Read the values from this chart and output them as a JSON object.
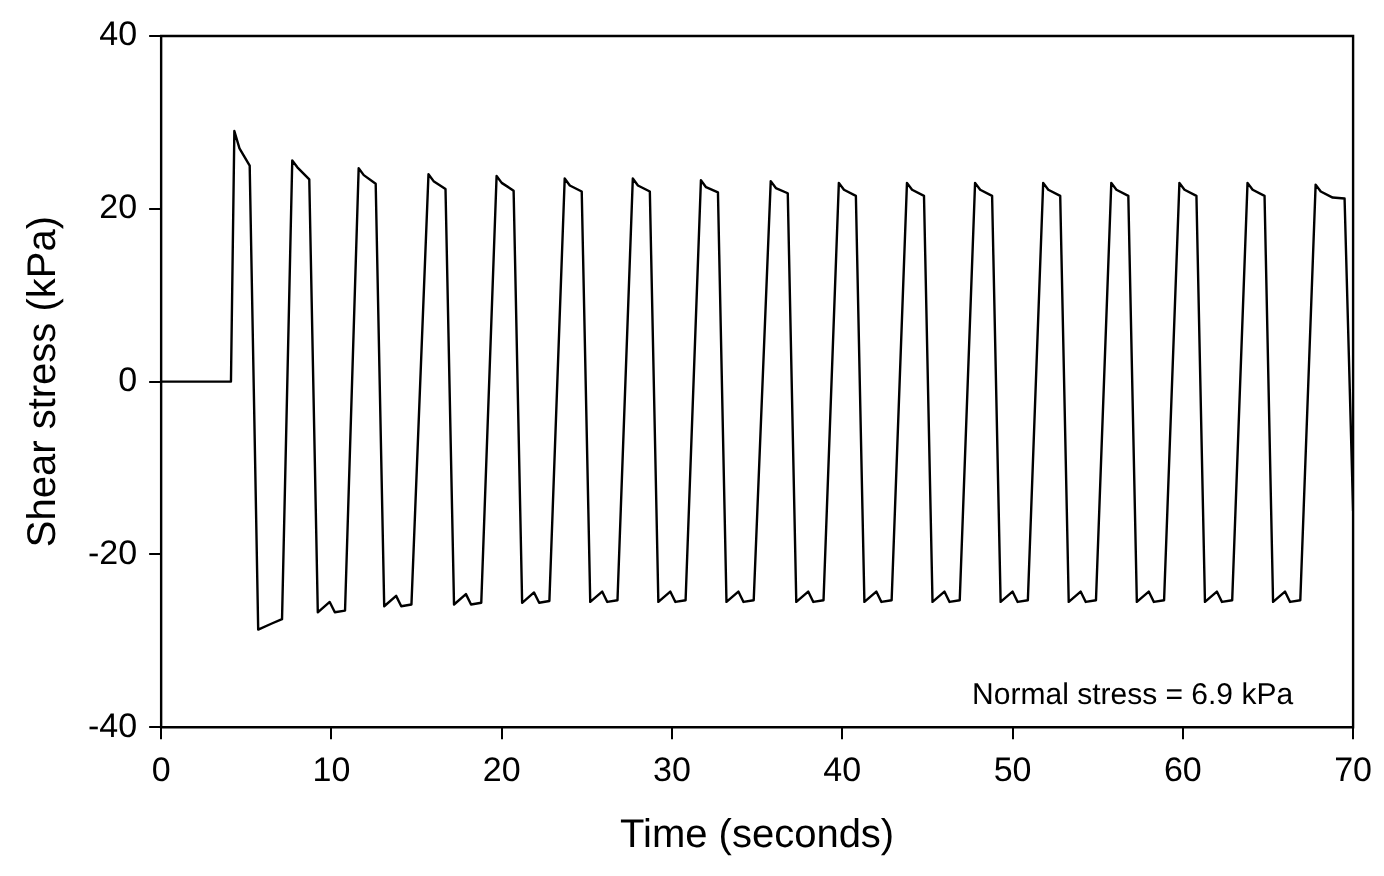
{
  "chart_data": {
    "type": "line",
    "xlabel": "Time (seconds)",
    "ylabel": "Shear stress (kPa)",
    "xlim": [
      0,
      70
    ],
    "xticks": [
      0,
      10,
      20,
      30,
      40,
      50,
      60,
      70
    ],
    "ylim": [
      -40,
      40
    ],
    "yticks": [
      -40,
      -20,
      0,
      20,
      40
    ],
    "grid": false,
    "legend": false,
    "marker": "none",
    "line_style": "solid",
    "annotations": [
      "Normal stress = 6.9 kPa"
    ],
    "series": [
      {
        "color": "#000000",
        "x": [
          0,
          4.1,
          4.3,
          4.6,
          5.2,
          5.7,
          6.5,
          7.1,
          7.7,
          8.0,
          8.7,
          9.2,
          9.9,
          10.2,
          10.8,
          11.6,
          11.9,
          12.6,
          13.1,
          13.8,
          14.1,
          14.7,
          15.7,
          16.0,
          16.7,
          17.2,
          17.9,
          18.2,
          18.8,
          19.7,
          20.0,
          20.7,
          21.2,
          21.9,
          22.2,
          22.8,
          23.7,
          24.0,
          24.7,
          25.2,
          25.9,
          26.2,
          26.8,
          27.7,
          28.0,
          28.7,
          29.2,
          29.9,
          30.2,
          30.8,
          31.7,
          32.0,
          32.7,
          33.2,
          33.9,
          34.2,
          34.8,
          35.8,
          36.1,
          36.8,
          37.3,
          38.0,
          38.3,
          38.9,
          39.8,
          40.1,
          40.8,
          41.3,
          42.0,
          42.3,
          42.9,
          43.8,
          44.1,
          44.8,
          45.3,
          46.0,
          46.3,
          46.9,
          47.8,
          48.1,
          48.8,
          49.3,
          50.0,
          50.3,
          50.9,
          51.8,
          52.1,
          52.8,
          53.3,
          54.0,
          54.3,
          54.9,
          55.8,
          56.1,
          56.8,
          57.3,
          58.0,
          58.3,
          58.9,
          59.8,
          60.1,
          60.8,
          61.3,
          62.0,
          62.3,
          62.9,
          63.8,
          64.1,
          64.8,
          65.3,
          66.0,
          66.3,
          66.9,
          67.8,
          68.1,
          68.8,
          69.5,
          70
        ],
        "values": [
          0,
          0,
          29,
          27,
          25,
          -28.7,
          -28,
          -27.5,
          25.6,
          24.8,
          23.4,
          -26.7,
          -25.5,
          -26.7,
          -26.5,
          24.7,
          23.9,
          22.9,
          -26,
          -24.8,
          -26,
          -25.8,
          24,
          23.2,
          22.3,
          -25.8,
          -24.6,
          -25.8,
          -25.6,
          23.8,
          23,
          22.1,
          -25.6,
          -24.4,
          -25.6,
          -25.4,
          23.5,
          22.7,
          22,
          -25.5,
          -24.3,
          -25.5,
          -25.3,
          23.5,
          22.7,
          22,
          -25.5,
          -24.3,
          -25.5,
          -25.3,
          23.3,
          22.5,
          21.9,
          -25.5,
          -24.3,
          -25.5,
          -25.3,
          23.2,
          22.4,
          21.8,
          -25.5,
          -24.3,
          -25.5,
          -25.3,
          23,
          22.2,
          21.5,
          -25.5,
          -24.3,
          -25.5,
          -25.3,
          23,
          22.2,
          21.5,
          -25.5,
          -24.3,
          -25.5,
          -25.3,
          23,
          22.2,
          21.5,
          -25.5,
          -24.3,
          -25.5,
          -25.3,
          23,
          22.2,
          21.5,
          -25.5,
          -24.3,
          -25.5,
          -25.3,
          23,
          22.2,
          21.5,
          -25.5,
          -24.3,
          -25.5,
          -25.3,
          23,
          22.2,
          21.5,
          -25.5,
          -24.3,
          -25.5,
          -25.3,
          23,
          22.2,
          21.5,
          -25.5,
          -24.3,
          -25.5,
          -25.3,
          22.8,
          22,
          21.3,
          21.2,
          -15
        ]
      }
    ]
  }
}
